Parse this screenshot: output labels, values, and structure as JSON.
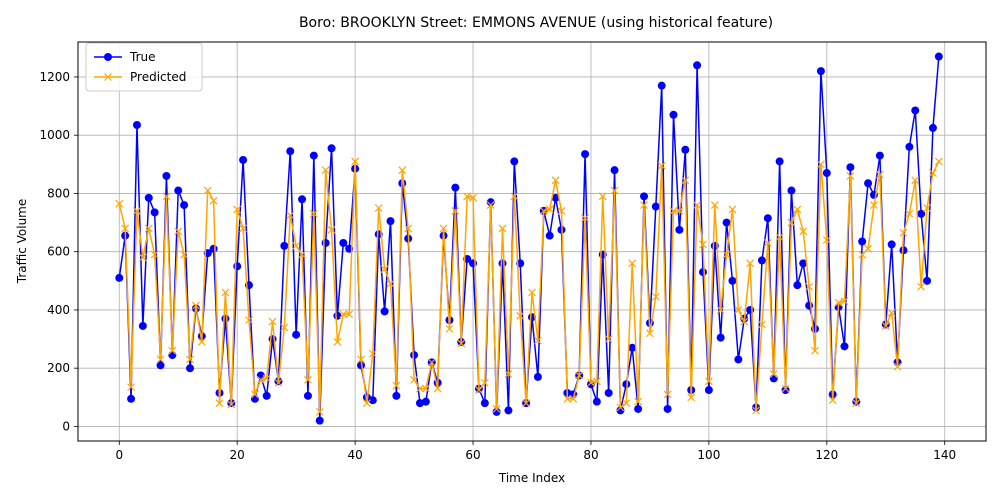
{
  "chart_data": {
    "type": "line",
    "title": "Boro: BROOKLYN Street: EMMONS AVENUE (using historical feature)",
    "xlabel": "Time Index",
    "ylabel": "Traffic Volume",
    "xlim": [
      -7,
      147
    ],
    "ylim": [
      -50,
      1320
    ],
    "xticks": [
      0,
      20,
      40,
      60,
      80,
      100,
      120,
      140
    ],
    "yticks": [
      0,
      200,
      400,
      600,
      800,
      1000,
      1200
    ],
    "grid": true,
    "legend_position": "top-left",
    "series": [
      {
        "name": "True",
        "color": "#0000ff",
        "marker": "circle",
        "values": [
          510,
          655,
          95,
          1035,
          345,
          785,
          735,
          210,
          860,
          245,
          810,
          760,
          200,
          405,
          310,
          595,
          610,
          115,
          370,
          80,
          550,
          915,
          485,
          95,
          175,
          105,
          300,
          155,
          620,
          945,
          315,
          780,
          105,
          930,
          20,
          630,
          955,
          380,
          630,
          610,
          885,
          210,
          100,
          90,
          660,
          395,
          705,
          105,
          835,
          645,
          245,
          80,
          85,
          220,
          150,
          655,
          365,
          820,
          290,
          575,
          560,
          130,
          80,
          770,
          50,
          560,
          55,
          910,
          560,
          80,
          375,
          170,
          740,
          655,
          785,
          675,
          115,
          110,
          175,
          935,
          145,
          85,
          590,
          115,
          880,
          55,
          145,
          270,
          60,
          790,
          355,
          755,
          1170,
          60,
          1070,
          675,
          950,
          125,
          1240,
          530,
          125,
          620,
          305,
          700,
          500,
          230,
          370,
          400,
          65,
          570,
          715,
          165,
          910,
          125,
          810,
          485,
          560,
          415,
          335,
          1220,
          870,
          110,
          410,
          275,
          890,
          85,
          635,
          835,
          795,
          930,
          350,
          625,
          220,
          605,
          960,
          1085,
          730,
          500,
          1025,
          1270
        ]
      },
      {
        "name": "Predicted",
        "color": "#ffa500",
        "marker": "x",
        "values": [
          765,
          680,
          135,
          740,
          580,
          680,
          590,
          230,
          790,
          260,
          670,
          590,
          230,
          415,
          290,
          810,
          775,
          80,
          460,
          75,
          745,
          680,
          365,
          110,
          160,
          165,
          360,
          150,
          340,
          725,
          620,
          590,
          160,
          730,
          50,
          880,
          675,
          290,
          385,
          385,
          910,
          230,
          80,
          250,
          750,
          540,
          490,
          140,
          880,
          680,
          160,
          130,
          130,
          220,
          130,
          680,
          335,
          740,
          285,
          790,
          785,
          125,
          150,
          760,
          60,
          680,
          180,
          790,
          380,
          80,
          460,
          295,
          740,
          745,
          845,
          740,
          95,
          95,
          175,
          715,
          150,
          155,
          790,
          300,
          810,
          65,
          80,
          560,
          85,
          760,
          320,
          445,
          895,
          110,
          740,
          740,
          845,
          100,
          760,
          625,
          155,
          760,
          400,
          590,
          745,
          400,
          360,
          560,
          55,
          350,
          630,
          180,
          650,
          130,
          700,
          745,
          670,
          480,
          260,
          900,
          640,
          90,
          425,
          430,
          860,
          80,
          590,
          610,
          760,
          865,
          345,
          390,
          205,
          665,
          730,
          845,
          480,
          750,
          870,
          910
        ]
      }
    ]
  }
}
